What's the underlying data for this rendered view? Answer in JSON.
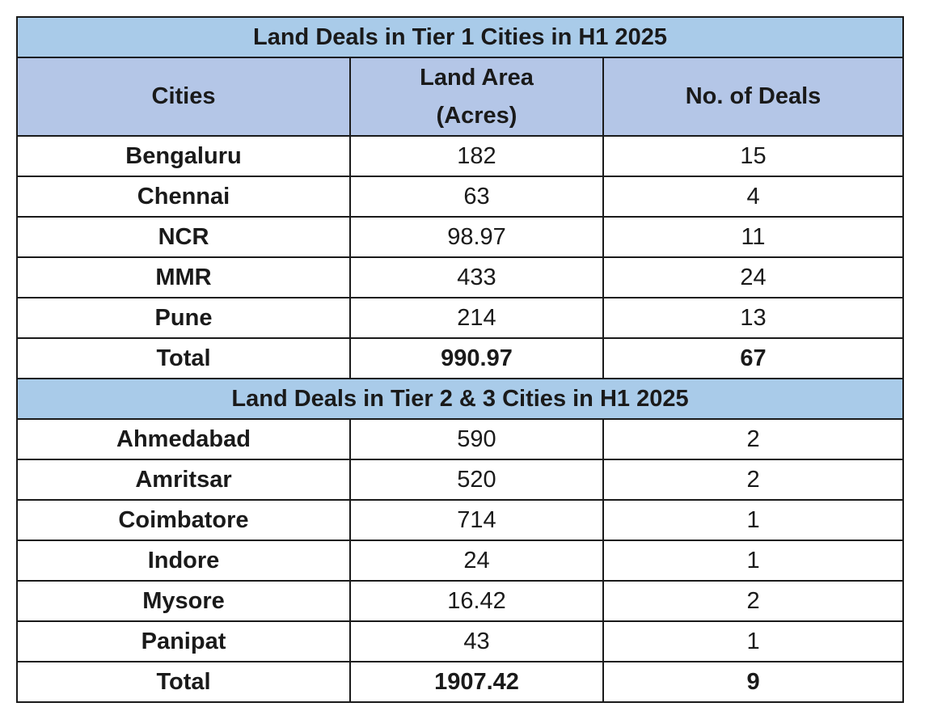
{
  "table": {
    "tier1_title": "Land Deals in Tier 1 Cities in H1 2025",
    "headers": {
      "cities": "Cities",
      "land_area_line1": "Land Area",
      "land_area_line2": "(Acres)",
      "deals": "No. of Deals"
    },
    "tier1_rows": [
      {
        "city": "Bengaluru",
        "area": "182",
        "deals": "15"
      },
      {
        "city": "Chennai",
        "area": "63",
        "deals": "4"
      },
      {
        "city": "NCR",
        "area": "98.97",
        "deals": "11"
      },
      {
        "city": "MMR",
        "area": "433",
        "deals": "24"
      },
      {
        "city": "Pune",
        "area": "214",
        "deals": "13"
      }
    ],
    "tier1_total": {
      "label": "Total",
      "area": "990.97",
      "deals": "67"
    },
    "tier23_title": "Land Deals in Tier 2 & 3 Cities in H1 2025",
    "tier23_rows": [
      {
        "city": "Ahmedabad",
        "area": "590",
        "deals": "2"
      },
      {
        "city": "Amritsar",
        "area": "520",
        "deals": "2"
      },
      {
        "city": "Coimbatore",
        "area": "714",
        "deals": "1"
      },
      {
        "city": "Indore",
        "area": "24",
        "deals": "1"
      },
      {
        "city": "Mysore",
        "area": "16.42",
        "deals": "2"
      },
      {
        "city": "Panipat",
        "area": "43",
        "deals": "1"
      }
    ],
    "tier23_total": {
      "label": "Total",
      "area": "1907.42",
      "deals": "9"
    }
  },
  "chart_data": {
    "type": "table",
    "title": "Land Deals in Tier 1 Cities in H1 2025",
    "columns": [
      "Cities",
      "Land Area (Acres)",
      "No. of Deals"
    ],
    "sections": [
      {
        "name": "Land Deals in Tier 1 Cities in H1 2025",
        "rows": [
          [
            "Bengaluru",
            182,
            15
          ],
          [
            "Chennai",
            63,
            4
          ],
          [
            "NCR",
            98.97,
            11
          ],
          [
            "MMR",
            433,
            24
          ],
          [
            "Pune",
            214,
            13
          ],
          [
            "Total",
            990.97,
            67
          ]
        ]
      },
      {
        "name": "Land Deals in Tier 2 & 3 Cities in H1 2025",
        "rows": [
          [
            "Ahmedabad",
            590,
            2
          ],
          [
            "Amritsar",
            520,
            2
          ],
          [
            "Coimbatore",
            714,
            1
          ],
          [
            "Indore",
            24,
            1
          ],
          [
            "Mysore",
            16.42,
            2
          ],
          [
            "Panipat",
            43,
            1
          ],
          [
            "Total",
            1907.42,
            9
          ]
        ]
      }
    ]
  }
}
